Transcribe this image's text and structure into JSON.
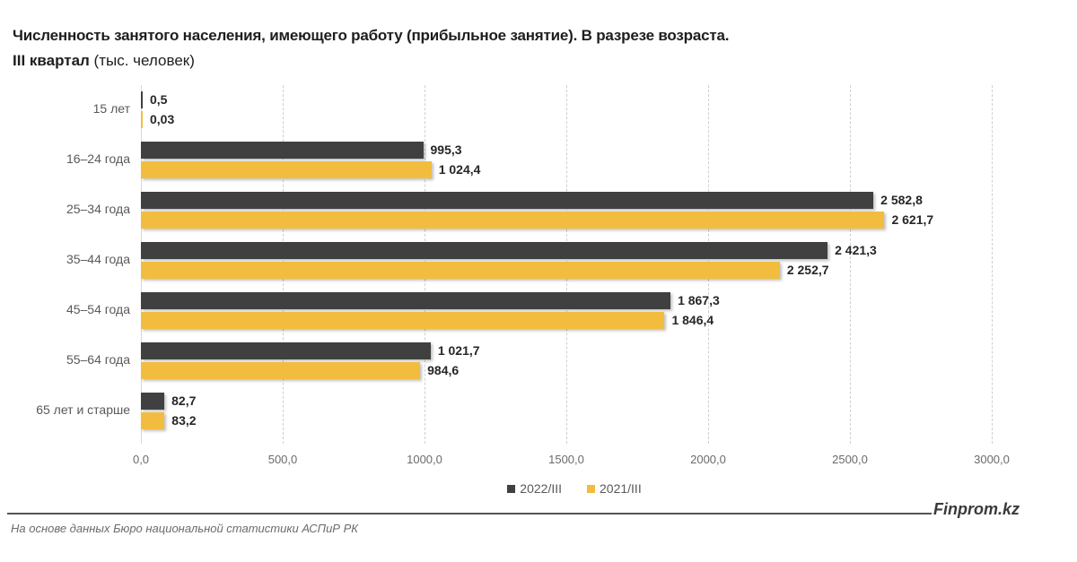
{
  "header": {
    "title": "Численность занятого населения, имеющего работу (прибыльное занятие). В разрезе возраста.",
    "subtitle_bold": "III квартал",
    "subtitle_rest": " (тыс. человек)"
  },
  "legend": [
    {
      "label": "2022/III",
      "color": "#404040"
    },
    {
      "label": "2021/III",
      "color": "#f2bd3f"
    }
  ],
  "footer": {
    "brand": "Finprom.kz",
    "source": "На основе данных Бюро национальной статистики АСПиР РК"
  },
  "chart_data": {
    "type": "bar",
    "orientation": "horizontal",
    "title": "Численность занятого населения, имеющего работу (прибыльное занятие). В разрезе возраста. III квартал (тыс. человек)",
    "xlabel": "",
    "ylabel": "",
    "xlim": [
      0,
      3000
    ],
    "grid": "vertical dashed",
    "legend_position": "bottom",
    "ticks": [
      "0,0",
      "500,0",
      "1000,0",
      "1500,0",
      "2000,0",
      "2500,0",
      "3000,0"
    ],
    "tick_values": [
      0,
      500,
      1000,
      1500,
      2000,
      2500,
      3000
    ],
    "categories": [
      "15 лет",
      "16–24 года",
      "25–34 года",
      "35–44 года",
      "45–54 года",
      "55–64 года",
      "65 лет и старше"
    ],
    "series": [
      {
        "name": "2022/III",
        "color": "#404040",
        "values": [
          0.5,
          995.3,
          2582.8,
          2421.3,
          1867.3,
          1021.7,
          82.7
        ],
        "labels": [
          "0,5",
          "995,3",
          "2 582,8",
          "2 421,3",
          "1 867,3",
          "1 021,7",
          "82,7"
        ]
      },
      {
        "name": "2021/III",
        "color": "#f2bd3f",
        "values": [
          0.03,
          1024.4,
          2621.7,
          2252.7,
          1846.4,
          984.6,
          83.2
        ],
        "labels": [
          "0,03",
          "1 024,4",
          "2 621,7",
          "2 252,7",
          "1 846,4",
          "984,6",
          "83,2"
        ]
      }
    ]
  }
}
